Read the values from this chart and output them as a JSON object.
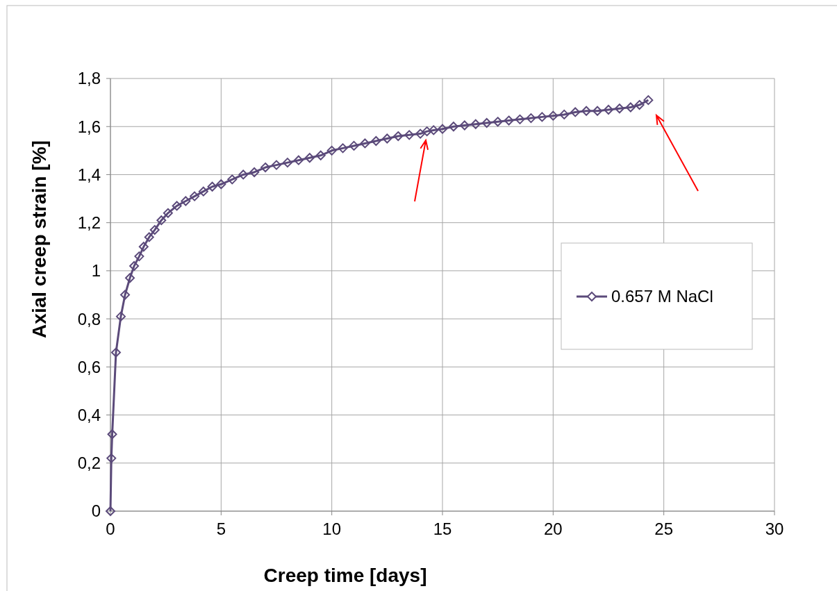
{
  "chart_data": {
    "type": "line",
    "xlabel": "Creep time [days]",
    "ylabel": "Axial creep strain [%]",
    "xlim": [
      0,
      30
    ],
    "xticks": [
      0,
      5,
      10,
      15,
      20,
      25,
      30
    ],
    "ylim": [
      0,
      1.8
    ],
    "yticks": [
      0,
      {
        "value": 0.2,
        "label": "0,2"
      },
      {
        "value": 0.4,
        "label": "0,4"
      },
      {
        "value": 0.6,
        "label": "0,6"
      },
      {
        "value": 0.8,
        "label": "0,8"
      },
      1,
      {
        "value": 1.2,
        "label": "1,2"
      },
      {
        "value": 1.4,
        "label": "1,4"
      },
      {
        "value": 1.6,
        "label": "1,6"
      },
      {
        "value": 1.8,
        "label": "1,8"
      }
    ],
    "grid": true,
    "legend": "right",
    "marker": "diamond",
    "line_style": "solid",
    "series": [
      {
        "name": "0.657 M NaCl",
        "color": "#5b4a7a",
        "x": [
          0,
          0.04,
          0.08,
          0.25,
          0.47,
          0.66,
          0.88,
          1.07,
          1.3,
          1.5,
          1.75,
          2.0,
          2.3,
          2.6,
          3.0,
          3.4,
          3.8,
          4.2,
          4.6,
          5.0,
          5.5,
          6.0,
          6.5,
          7.0,
          7.5,
          8.0,
          8.5,
          9.0,
          9.5,
          10.0,
          10.5,
          11.0,
          11.5,
          12.0,
          12.5,
          13.0,
          13.5,
          14.0,
          14.3,
          14.6,
          15.0,
          15.5,
          16.0,
          16.5,
          17.0,
          17.5,
          18.0,
          18.5,
          19.0,
          19.5,
          20.0,
          20.5,
          21.0,
          21.5,
          22.0,
          22.5,
          23.0,
          23.5,
          23.9,
          24.3
        ],
        "values": [
          0,
          0.22,
          0.32,
          0.66,
          0.81,
          0.9,
          0.97,
          1.02,
          1.06,
          1.1,
          1.14,
          1.17,
          1.21,
          1.24,
          1.27,
          1.29,
          1.31,
          1.33,
          1.35,
          1.36,
          1.38,
          1.4,
          1.41,
          1.43,
          1.44,
          1.45,
          1.46,
          1.47,
          1.48,
          1.5,
          1.51,
          1.52,
          1.53,
          1.54,
          1.55,
          1.56,
          1.565,
          1.57,
          1.58,
          1.585,
          1.59,
          1.6,
          1.605,
          1.61,
          1.615,
          1.62,
          1.625,
          1.63,
          1.635,
          1.64,
          1.645,
          1.65,
          1.66,
          1.665,
          1.665,
          1.67,
          1.675,
          1.68,
          1.69,
          1.71
        ]
      }
    ]
  }
}
